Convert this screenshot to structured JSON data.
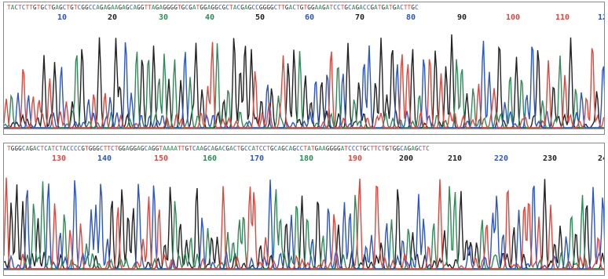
{
  "colors": {
    "A": "#2e8b57",
    "C": "#2b55c8",
    "G": "#222222",
    "T": "#e0463c",
    "baseline": "#7a6a60"
  },
  "chart_data": [
    {
      "type": "line",
      "sequence": "TACTCTTGTGCTGAGCTGTCGGCCAGAGAAGAGCAGGTTAGAGGGGTGCGATGGAGGCGCTACGAGCCGGGGCTTGACTGTGGAAGATCCTGCAGACCGATGATGACTTGC",
      "position_labels": [
        {
          "value": "10",
          "base": "C"
        },
        {
          "value": "20",
          "base": "G"
        },
        {
          "value": "30",
          "base": "A"
        },
        {
          "value": "40",
          "base": "A"
        },
        {
          "value": "50",
          "base": "G"
        },
        {
          "value": "60",
          "base": "C"
        },
        {
          "value": "70",
          "base": "G"
        },
        {
          "value": "80",
          "base": "C"
        },
        {
          "value": "90",
          "base": "G"
        },
        {
          "value": "100",
          "base": "T"
        },
        {
          "value": "110",
          "base": "T"
        },
        {
          "value": "12",
          "base": "C"
        }
      ]
    },
    {
      "type": "line",
      "sequence": "TGGGCAGACTCATCTACCCCGTGGGCTTCTGGAGGAGCAGGTAAAATTGTCAAGCAGACGACTGCCATCCTGCAGCAGCCTATGAAGGGGATCCCTGCTTCTGTGGCAGAGCTC",
      "position_labels": [
        {
          "value": "130",
          "base": "T"
        },
        {
          "value": "140",
          "base": "C"
        },
        {
          "value": "150",
          "base": "T"
        },
        {
          "value": "160",
          "base": "A"
        },
        {
          "value": "170",
          "base": "C"
        },
        {
          "value": "180",
          "base": "A"
        },
        {
          "value": "190",
          "base": "T"
        },
        {
          "value": "200",
          "base": "G"
        },
        {
          "value": "210",
          "base": "G"
        },
        {
          "value": "220",
          "base": "C"
        },
        {
          "value": "230",
          "base": "G"
        },
        {
          "value": "24",
          "base": "G"
        }
      ]
    }
  ]
}
